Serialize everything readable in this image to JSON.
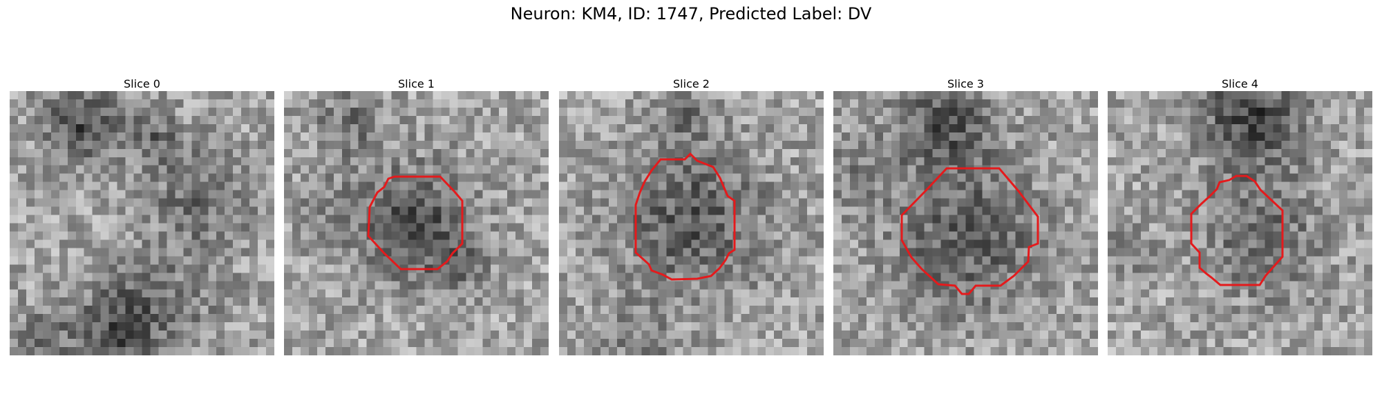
{
  "figure": {
    "title": "Neuron: KM4, ID: 1747, Predicted Label: DV"
  },
  "colors": {
    "roi": "#e41a1c",
    "cmap": "gray"
  },
  "slices": [
    {
      "label": "Slice 0",
      "has_roi": false
    },
    {
      "label": "Slice 1",
      "has_roi": true
    },
    {
      "label": "Slice 2",
      "has_roi": true
    },
    {
      "label": "Slice 3",
      "has_roi": true
    },
    {
      "label": "Slice 4",
      "has_roi": true
    }
  ]
}
